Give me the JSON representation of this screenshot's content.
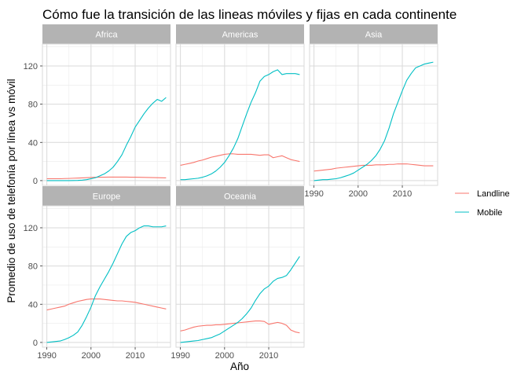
{
  "chart_data": {
    "type": "line",
    "title": "Cómo fue la transición de las lineas móviles y fijas en cada continente",
    "xlabel": "Año",
    "ylabel": "Promedio de uso de telefonía por línea vs móvil",
    "xlim": [
      1989,
      2018
    ],
    "ylim": [
      -5,
      143
    ],
    "x_ticks": [
      1990,
      2000,
      2010
    ],
    "y_ticks": [
      0,
      40,
      80,
      120
    ],
    "grid": true,
    "legend_placement": "right",
    "legend": [
      {
        "name": "Landline",
        "color": "#F8766D"
      },
      {
        "name": "Mobile",
        "color": "#00BFC4"
      }
    ],
    "x": [
      1990,
      1991,
      1992,
      1993,
      1994,
      1995,
      1996,
      1997,
      1998,
      1999,
      2000,
      2001,
      2002,
      2003,
      2004,
      2005,
      2006,
      2007,
      2008,
      2009,
      2010,
      2011,
      2012,
      2013,
      2014,
      2015,
      2016,
      2017
    ],
    "panels": [
      {
        "name": "Africa",
        "series": [
          {
            "name": "Landline",
            "values": [
              2,
              2,
              2,
              2,
              2.2,
              2.3,
              2.5,
              2.7,
              2.9,
              3.1,
              3.3,
              3.5,
              3.6,
              3.6,
              3.7,
              3.7,
              3.7,
              3.7,
              3.7,
              3.6,
              3.6,
              3.5,
              3.4,
              3.3,
              3.2,
              3.1,
              3.0,
              2.9
            ]
          },
          {
            "name": "Mobile",
            "values": [
              0,
              0,
              0,
              0,
              0,
              0,
              0.1,
              0.2,
              0.5,
              1,
              2,
              3,
              5,
              7,
              10,
              14,
              20,
              27,
              37,
              46,
              56,
              63,
              70,
              76,
              81,
              85,
              83,
              87
            ]
          }
        ]
      },
      {
        "name": "Americas",
        "series": [
          {
            "name": "Landline",
            "values": [
              16,
              17,
              18,
              19,
              20.5,
              21.5,
              23,
              24.5,
              25.5,
              26.5,
              27.5,
              28,
              28,
              27.5,
              27.5,
              27.5,
              27.5,
              27,
              26.5,
              27,
              27,
              24,
              25,
              26,
              24,
              22,
              21,
              20
            ]
          },
          {
            "name": "Mobile",
            "values": [
              1,
              1,
              1.5,
              2,
              2.5,
              3.5,
              5,
              7,
              10,
              14,
              19,
              26,
              34,
              44,
              57,
              70,
              82,
              92,
              104,
              109,
              111,
              114,
              116,
              111,
              112,
              112,
              112,
              111
            ]
          }
        ]
      },
      {
        "name": "Asia",
        "series": [
          {
            "name": "Landline",
            "values": [
              10,
              10.5,
              11,
              11.5,
              12,
              13,
              13.5,
              14,
              14.5,
              15,
              15.5,
              16,
              16,
              16,
              16.5,
              16.5,
              16.5,
              17,
              17,
              17.5,
              17.5,
              17.5,
              17,
              16.5,
              16,
              15.5,
              15.5,
              15.5
            ]
          },
          {
            "name": "Mobile",
            "values": [
              0,
              0.5,
              1,
              1,
              1.5,
              2,
              3,
              4.5,
              6,
              8,
              11,
              14,
              17,
              21,
              26,
              33,
              42,
              55,
              70,
              82,
              94,
              105,
              112,
              118,
              120,
              122,
              123,
              124
            ]
          }
        ]
      },
      {
        "name": "Europe",
        "series": [
          {
            "name": "Landline",
            "values": [
              34,
              35,
              36,
              37,
              38,
              40,
              41.5,
              43,
              44,
              45,
              45.5,
              45.5,
              45.5,
              45,
              44.5,
              44,
              43.5,
              43.5,
              43,
              42.5,
              42,
              41,
              40,
              39,
              38,
              37,
              36,
              35
            ]
          },
          {
            "name": "Mobile",
            "values": [
              0,
              0.5,
              1,
              1.5,
              3,
              5,
              7.5,
              11,
              18,
              27,
              37,
              49,
              58,
              66,
              74,
              83,
              93,
              103,
              111,
              115,
              117,
              120,
              122,
              122,
              121,
              121,
              121,
              122
            ]
          }
        ]
      },
      {
        "name": "Oceania",
        "series": [
          {
            "name": "Landline",
            "values": [
              12,
              13,
              14.5,
              16,
              17,
              17.5,
              18,
              18,
              18.5,
              18.5,
              19,
              19.5,
              20,
              20.5,
              21,
              21.5,
              22,
              22.5,
              22.5,
              22,
              19,
              20,
              21,
              20,
              18,
              13,
              11,
              10
            ]
          },
          {
            "name": "Mobile",
            "values": [
              0,
              0.5,
              1,
              1.5,
              2,
              3,
              4,
              5,
              7,
              9,
              12,
              15,
              18,
              21,
              25,
              30,
              36,
              44,
              51,
              56,
              59,
              64,
              67,
              68,
              70,
              76,
              83,
              90
            ]
          }
        ]
      }
    ]
  }
}
